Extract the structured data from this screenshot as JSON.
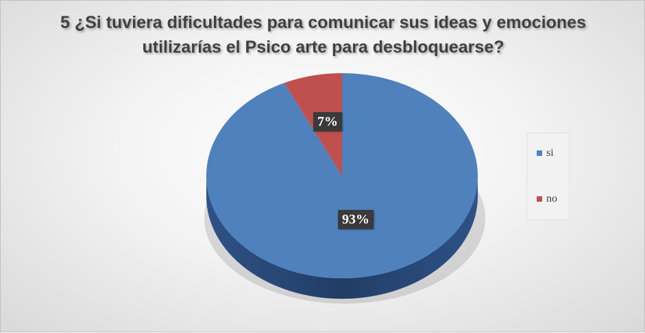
{
  "chart_data": {
    "type": "pie",
    "title": "5 ¿Si tuviera dificultades para comunicar sus ideas y emociones utilizarías el Psico arte para desbloquearse?",
    "categories": [
      "si",
      "no"
    ],
    "values": [
      93,
      7
    ],
    "data_labels": [
      "93%",
      "7%"
    ],
    "colors": [
      "#4f81bd",
      "#c0504d"
    ],
    "side_colors": [
      "#2b4c7e",
      "#7b2a27"
    ],
    "legend_position": "right",
    "style": "3d"
  }
}
